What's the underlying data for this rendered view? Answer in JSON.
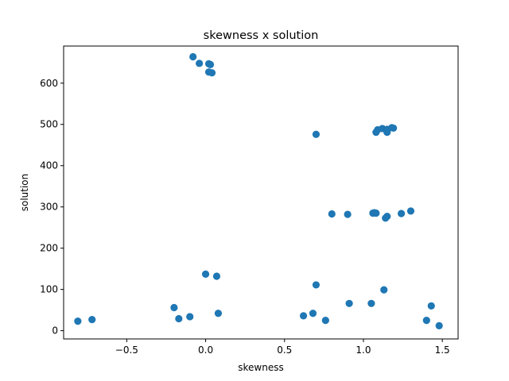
{
  "chart_data": {
    "type": "scatter",
    "title": "skewness x solution",
    "xlabel": "skewness",
    "ylabel": "solution",
    "xlim": [
      -0.9,
      1.6
    ],
    "ylim": [
      -20,
      690
    ],
    "xticks": [
      -0.5,
      0.0,
      0.5,
      1.0,
      1.5
    ],
    "xtick_labels": [
      "−0.5",
      "0.0",
      "0.5",
      "1.0",
      "1.5"
    ],
    "yticks": [
      0,
      100,
      200,
      300,
      400,
      500,
      600
    ],
    "ytick_labels": [
      "0",
      "100",
      "200",
      "300",
      "400",
      "500",
      "600"
    ],
    "grid": false,
    "color": "#1f77b4",
    "points": [
      {
        "x": -0.08,
        "y": 664
      },
      {
        "x": -0.04,
        "y": 648
      },
      {
        "x": 0.02,
        "y": 647
      },
      {
        "x": 0.03,
        "y": 645
      },
      {
        "x": 0.02,
        "y": 627
      },
      {
        "x": 0.04,
        "y": 625
      },
      {
        "x": 0.7,
        "y": 476
      },
      {
        "x": 1.08,
        "y": 481
      },
      {
        "x": 1.09,
        "y": 487
      },
      {
        "x": 1.12,
        "y": 490
      },
      {
        "x": 1.15,
        "y": 488
      },
      {
        "x": 1.15,
        "y": 481
      },
      {
        "x": 1.18,
        "y": 492
      },
      {
        "x": 1.19,
        "y": 491
      },
      {
        "x": 0.8,
        "y": 283
      },
      {
        "x": 0.9,
        "y": 282
      },
      {
        "x": 1.06,
        "y": 285
      },
      {
        "x": 1.07,
        "y": 286
      },
      {
        "x": 1.08,
        "y": 285
      },
      {
        "x": 1.14,
        "y": 273
      },
      {
        "x": 1.15,
        "y": 277
      },
      {
        "x": 1.24,
        "y": 284
      },
      {
        "x": 1.3,
        "y": 290
      },
      {
        "x": 0.0,
        "y": 137
      },
      {
        "x": 0.07,
        "y": 132
      },
      {
        "x": 0.7,
        "y": 111
      },
      {
        "x": 1.13,
        "y": 99
      },
      {
        "x": -0.81,
        "y": 23
      },
      {
        "x": -0.72,
        "y": 27
      },
      {
        "x": -0.2,
        "y": 56
      },
      {
        "x": -0.17,
        "y": 29
      },
      {
        "x": -0.1,
        "y": 34
      },
      {
        "x": 0.08,
        "y": 42
      },
      {
        "x": 0.62,
        "y": 36
      },
      {
        "x": 0.68,
        "y": 42
      },
      {
        "x": 0.76,
        "y": 25
      },
      {
        "x": 0.91,
        "y": 66
      },
      {
        "x": 1.05,
        "y": 66
      },
      {
        "x": 1.4,
        "y": 25
      },
      {
        "x": 1.43,
        "y": 60
      },
      {
        "x": 1.48,
        "y": 12
      }
    ]
  }
}
